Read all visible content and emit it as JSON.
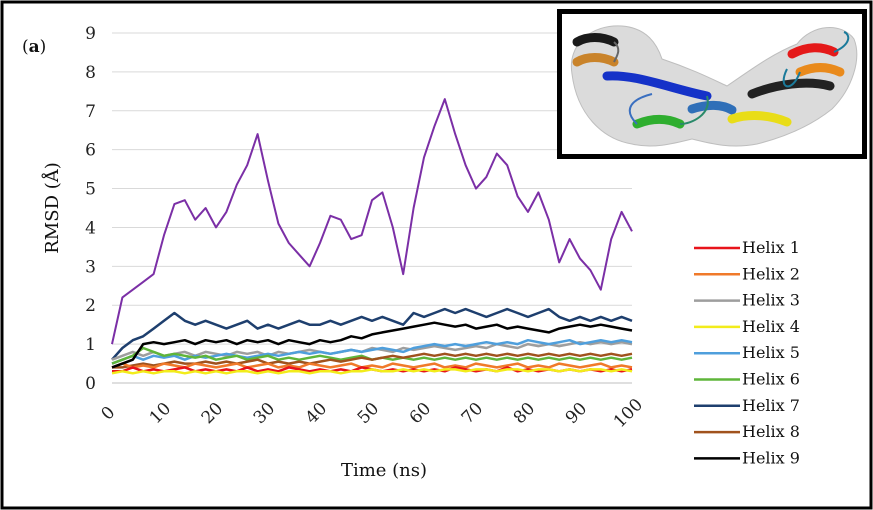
{
  "panel_label": {
    "open": "(",
    "letter": "a",
    "close": ")"
  },
  "colors": {
    "helix_1": "#e8141b",
    "helix_2": "#f07a2a",
    "helix_3": "#9e9e9e",
    "helix_4": "#f2ec1b",
    "helix_5": "#4f9fdc",
    "helix_6": "#5fb53a",
    "helix_7": "#1e3f6e",
    "helix_8": "#a0521d",
    "helix_9": "#000000",
    "whole": "#7b2fa6"
  },
  "chart_data": {
    "type": "line",
    "xlabel": "Time (ns)",
    "ylabel": "RMSD (Å)",
    "xlim": [
      0,
      100
    ],
    "ylim": [
      0,
      9
    ],
    "x_ticks": [
      "0",
      "10",
      "20",
      "30",
      "40",
      "50",
      "60",
      "70",
      "80",
      "90",
      "100"
    ],
    "y_ticks": [
      "0",
      "1",
      "2",
      "3",
      "4",
      "5",
      "6",
      "7",
      "8",
      "9"
    ],
    "grid": "horizontal",
    "legend_position": "right",
    "x": [
      0,
      2,
      4,
      6,
      8,
      10,
      12,
      14,
      16,
      18,
      20,
      22,
      24,
      26,
      28,
      30,
      32,
      34,
      36,
      38,
      40,
      42,
      44,
      46,
      48,
      50,
      52,
      54,
      56,
      58,
      60,
      62,
      64,
      66,
      68,
      70,
      72,
      74,
      76,
      78,
      80,
      82,
      84,
      86,
      88,
      90,
      92,
      94,
      96,
      98,
      100
    ],
    "series": [
      {
        "name": "",
        "color_key": "whole",
        "values": [
          1.0,
          2.2,
          2.4,
          2.6,
          2.8,
          3.8,
          4.6,
          4.7,
          4.2,
          4.5,
          4.0,
          4.4,
          5.1,
          5.6,
          6.4,
          5.2,
          4.1,
          3.6,
          3.3,
          3.0,
          3.6,
          4.3,
          4.2,
          3.7,
          3.8,
          4.7,
          4.9,
          4.0,
          2.8,
          4.5,
          5.8,
          6.6,
          7.3,
          6.4,
          5.6,
          5.0,
          5.3,
          5.9,
          5.6,
          4.8,
          4.4,
          4.9,
          4.2,
          3.1,
          3.7,
          3.2,
          2.9,
          2.4,
          3.7,
          4.4,
          3.9
        ]
      },
      {
        "name": "Helix 1",
        "color_key": "helix_1",
        "values": [
          0.3,
          0.3,
          0.4,
          0.3,
          0.35,
          0.3,
          0.35,
          0.4,
          0.3,
          0.35,
          0.3,
          0.35,
          0.3,
          0.4,
          0.3,
          0.35,
          0.3,
          0.4,
          0.35,
          0.3,
          0.35,
          0.3,
          0.35,
          0.3,
          0.4,
          0.35,
          0.3,
          0.35,
          0.3,
          0.35,
          0.3,
          0.35,
          0.3,
          0.4,
          0.35,
          0.3,
          0.35,
          0.3,
          0.4,
          0.3,
          0.35,
          0.3,
          0.35,
          0.3,
          0.35,
          0.3,
          0.35,
          0.3,
          0.35,
          0.3,
          0.35
        ]
      },
      {
        "name": "Helix 2",
        "color_key": "helix_2",
        "values": [
          0.4,
          0.5,
          0.4,
          0.45,
          0.4,
          0.5,
          0.45,
          0.4,
          0.5,
          0.45,
          0.4,
          0.45,
          0.5,
          0.4,
          0.45,
          0.5,
          0.4,
          0.45,
          0.4,
          0.5,
          0.45,
          0.4,
          0.45,
          0.5,
          0.4,
          0.45,
          0.4,
          0.5,
          0.45,
          0.4,
          0.45,
          0.5,
          0.4,
          0.45,
          0.4,
          0.5,
          0.45,
          0.4,
          0.45,
          0.5,
          0.4,
          0.45,
          0.4,
          0.5,
          0.45,
          0.4,
          0.45,
          0.5,
          0.4,
          0.45,
          0.4
        ]
      },
      {
        "name": "Helix 3",
        "color_key": "helix_3",
        "values": [
          0.6,
          0.7,
          0.8,
          0.7,
          0.8,
          0.7,
          0.75,
          0.8,
          0.7,
          0.8,
          0.75,
          0.7,
          0.8,
          0.75,
          0.8,
          0.7,
          0.8,
          0.75,
          0.8,
          0.85,
          0.8,
          0.75,
          0.8,
          0.85,
          0.8,
          0.9,
          0.85,
          0.8,
          0.9,
          0.85,
          0.9,
          0.95,
          0.9,
          0.85,
          0.9,
          0.95,
          0.9,
          1.0,
          0.95,
          0.9,
          1.0,
          0.95,
          1.0,
          0.95,
          1.0,
          1.05,
          1.0,
          1.05,
          1.0,
          1.05,
          1.0
        ]
      },
      {
        "name": "Helix 4",
        "color_key": "helix_4",
        "values": [
          0.25,
          0.3,
          0.25,
          0.3,
          0.25,
          0.3,
          0.3,
          0.25,
          0.3,
          0.25,
          0.3,
          0.25,
          0.3,
          0.3,
          0.25,
          0.3,
          0.25,
          0.3,
          0.3,
          0.25,
          0.3,
          0.3,
          0.25,
          0.3,
          0.3,
          0.35,
          0.3,
          0.3,
          0.35,
          0.3,
          0.35,
          0.3,
          0.35,
          0.35,
          0.3,
          0.35,
          0.35,
          0.3,
          0.35,
          0.35,
          0.3,
          0.35,
          0.35,
          0.3,
          0.35,
          0.3,
          0.35,
          0.35,
          0.3,
          0.35,
          0.3
        ]
      },
      {
        "name": "Helix 5",
        "color_key": "helix_5",
        "values": [
          0.5,
          0.6,
          0.7,
          0.6,
          0.7,
          0.65,
          0.7,
          0.6,
          0.7,
          0.65,
          0.7,
          0.75,
          0.7,
          0.65,
          0.7,
          0.75,
          0.7,
          0.75,
          0.8,
          0.75,
          0.8,
          0.75,
          0.8,
          0.85,
          0.8,
          0.85,
          0.9,
          0.85,
          0.8,
          0.9,
          0.95,
          1.0,
          0.95,
          1.0,
          0.95,
          1.0,
          1.05,
          1.0,
          1.05,
          1.0,
          1.1,
          1.05,
          1.0,
          1.05,
          1.1,
          1.0,
          1.05,
          1.1,
          1.05,
          1.1,
          1.05
        ]
      },
      {
        "name": "Helix 6",
        "color_key": "helix_6",
        "values": [
          0.5,
          0.6,
          0.7,
          0.9,
          0.8,
          0.7,
          0.75,
          0.7,
          0.65,
          0.7,
          0.6,
          0.65,
          0.7,
          0.6,
          0.65,
          0.7,
          0.6,
          0.65,
          0.6,
          0.65,
          0.7,
          0.65,
          0.6,
          0.65,
          0.7,
          0.6,
          0.65,
          0.6,
          0.65,
          0.6,
          0.65,
          0.6,
          0.65,
          0.6,
          0.65,
          0.6,
          0.65,
          0.6,
          0.65,
          0.6,
          0.65,
          0.6,
          0.65,
          0.6,
          0.65,
          0.6,
          0.65,
          0.6,
          0.65,
          0.6,
          0.65
        ]
      },
      {
        "name": "Helix 7",
        "color_key": "helix_7",
        "values": [
          0.6,
          0.9,
          1.1,
          1.2,
          1.4,
          1.6,
          1.8,
          1.6,
          1.5,
          1.6,
          1.5,
          1.4,
          1.5,
          1.6,
          1.4,
          1.5,
          1.4,
          1.5,
          1.6,
          1.5,
          1.5,
          1.6,
          1.5,
          1.6,
          1.7,
          1.6,
          1.7,
          1.6,
          1.5,
          1.8,
          1.7,
          1.8,
          1.9,
          1.8,
          1.9,
          1.8,
          1.7,
          1.8,
          1.9,
          1.8,
          1.7,
          1.8,
          1.9,
          1.7,
          1.6,
          1.7,
          1.6,
          1.7,
          1.6,
          1.7,
          1.6
        ]
      },
      {
        "name": "Helix 8",
        "color_key": "helix_8",
        "values": [
          0.4,
          0.4,
          0.45,
          0.5,
          0.45,
          0.5,
          0.55,
          0.5,
          0.5,
          0.55,
          0.5,
          0.55,
          0.5,
          0.55,
          0.6,
          0.5,
          0.55,
          0.5,
          0.55,
          0.5,
          0.55,
          0.6,
          0.55,
          0.6,
          0.65,
          0.6,
          0.65,
          0.7,
          0.65,
          0.7,
          0.75,
          0.7,
          0.75,
          0.7,
          0.75,
          0.7,
          0.75,
          0.7,
          0.75,
          0.7,
          0.75,
          0.7,
          0.75,
          0.7,
          0.75,
          0.7,
          0.75,
          0.7,
          0.75,
          0.7,
          0.75
        ]
      },
      {
        "name": "Helix 9",
        "color_key": "helix_9",
        "values": [
          0.4,
          0.5,
          0.6,
          1.0,
          1.05,
          1.0,
          1.05,
          1.1,
          1.0,
          1.1,
          1.05,
          1.1,
          1.0,
          1.1,
          1.05,
          1.1,
          1.0,
          1.1,
          1.05,
          1.0,
          1.1,
          1.05,
          1.1,
          1.2,
          1.15,
          1.25,
          1.3,
          1.35,
          1.4,
          1.45,
          1.5,
          1.55,
          1.5,
          1.45,
          1.5,
          1.4,
          1.45,
          1.5,
          1.4,
          1.45,
          1.4,
          1.35,
          1.3,
          1.4,
          1.45,
          1.5,
          1.45,
          1.5,
          1.45,
          1.4,
          1.35
        ]
      }
    ]
  }
}
